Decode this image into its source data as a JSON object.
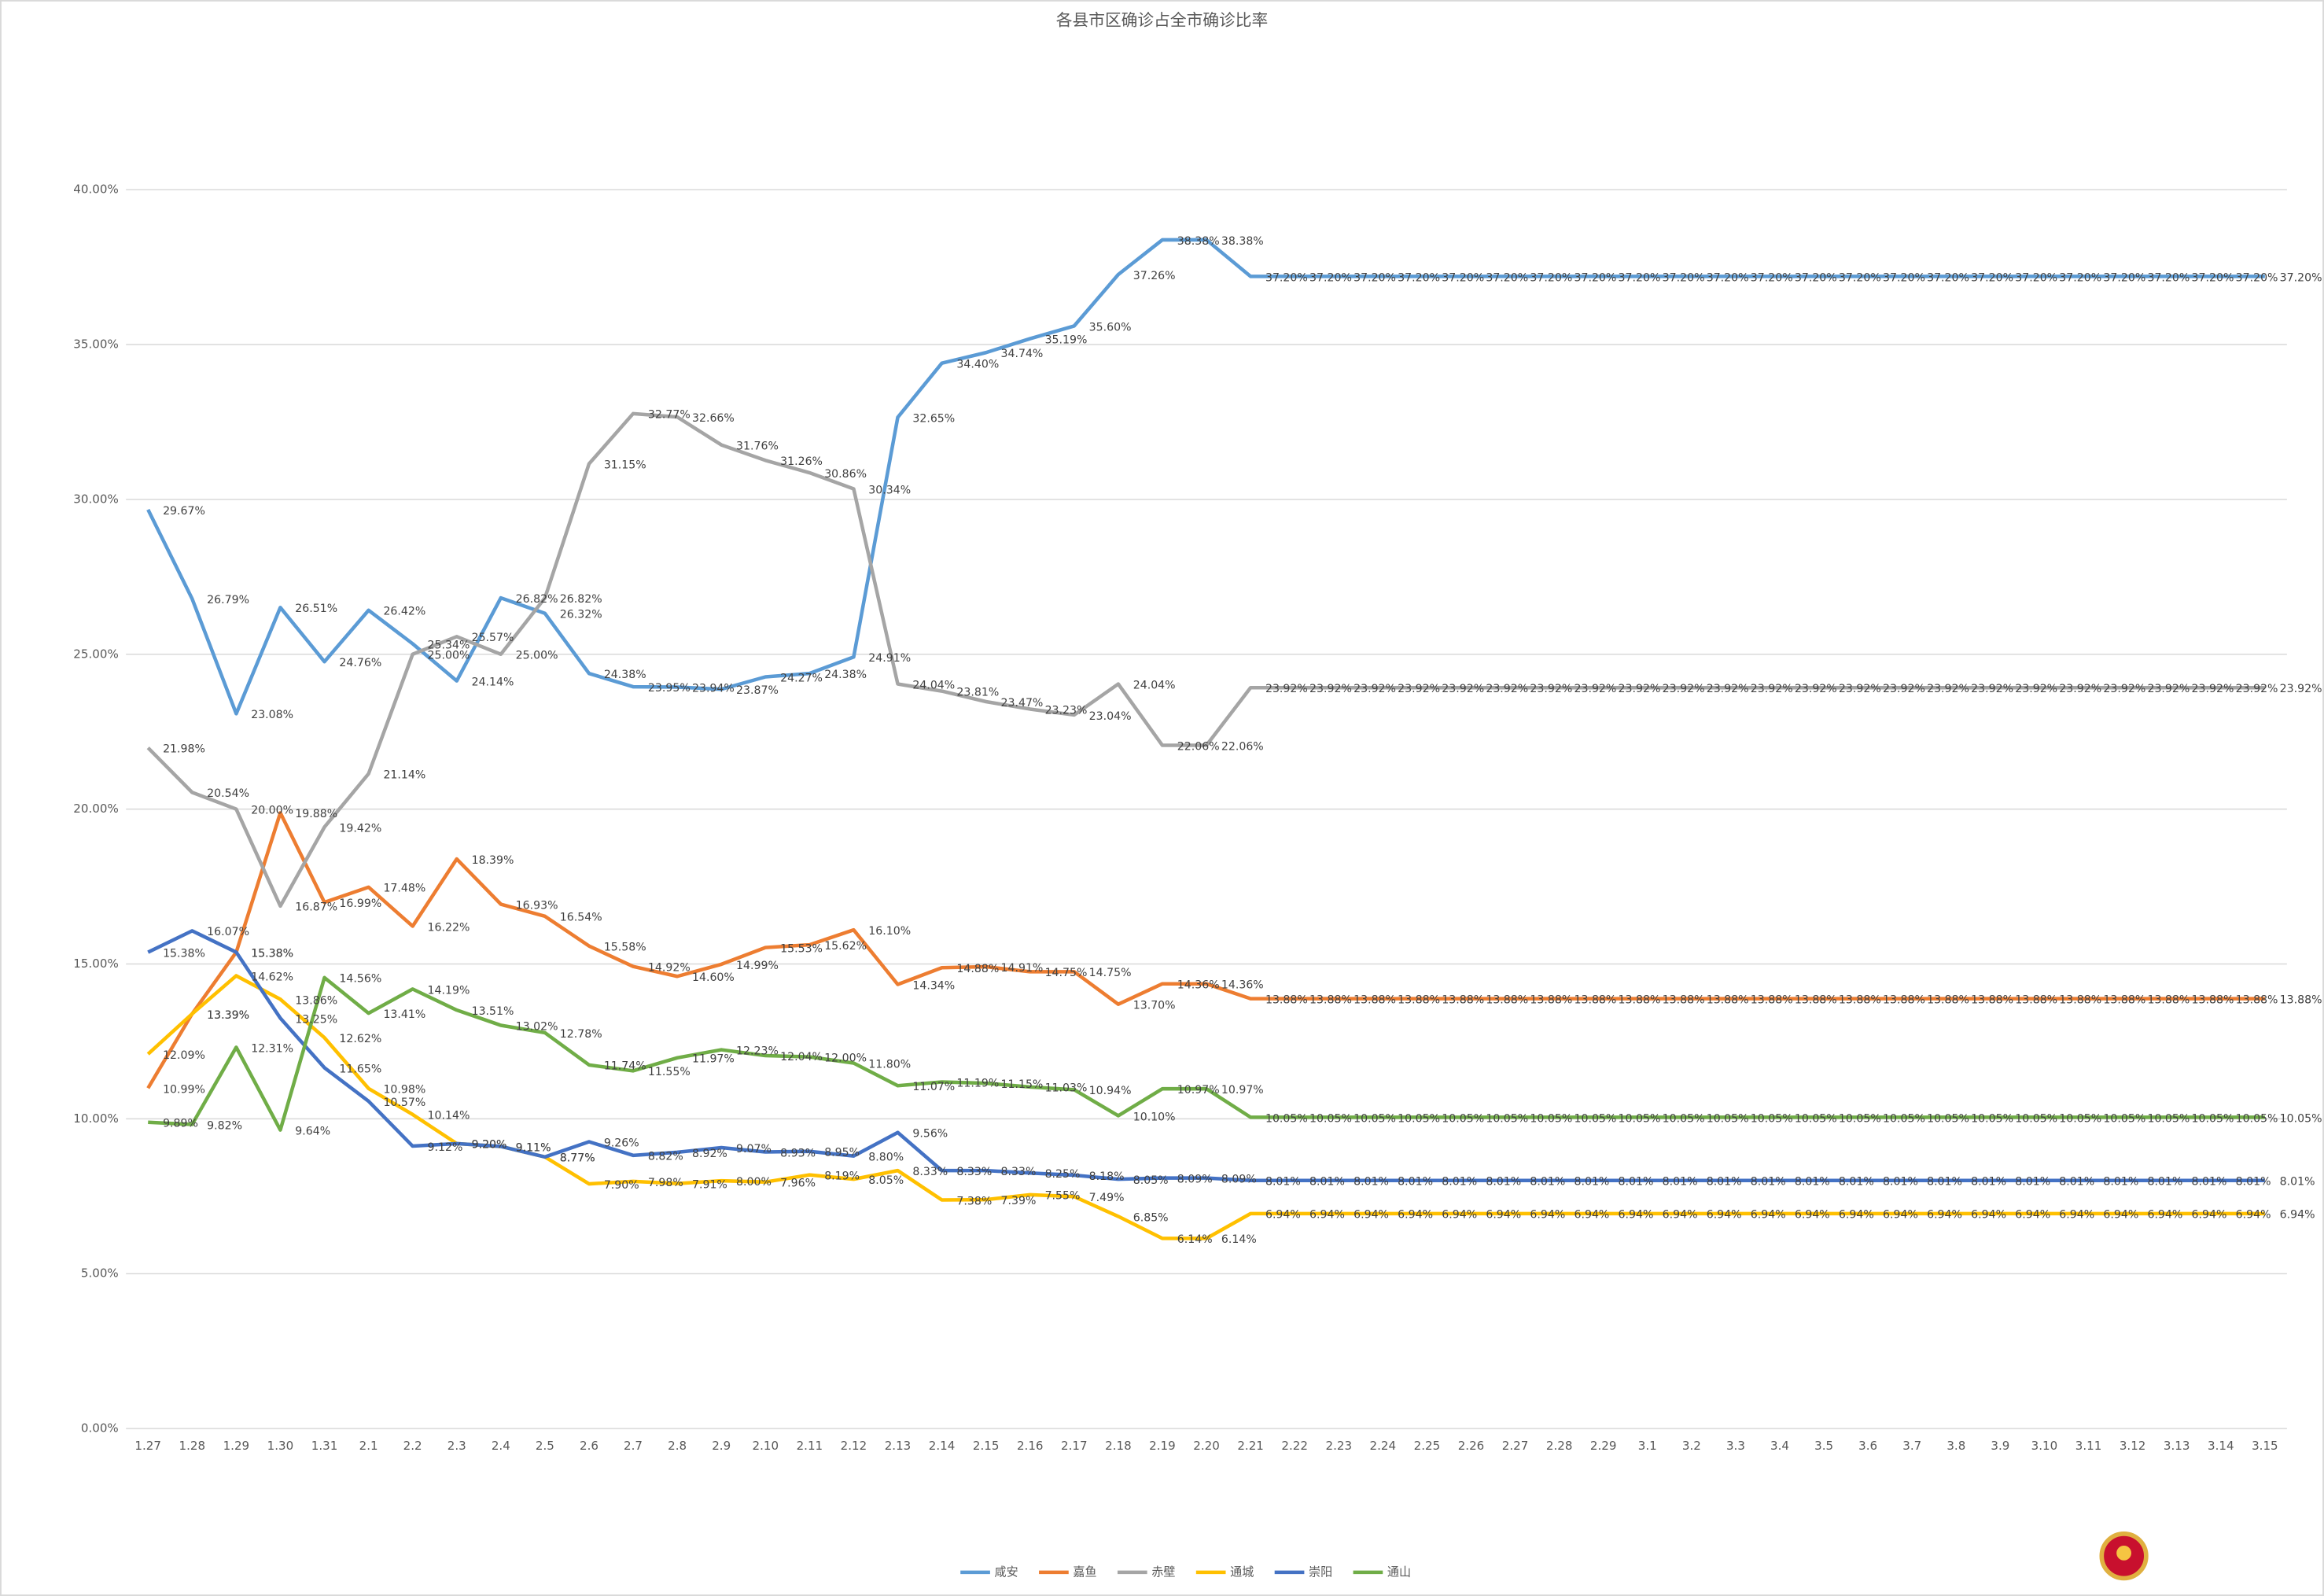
{
  "chart_data": {
    "type": "line",
    "title": "各县市区确诊占全市确诊比率",
    "categories": [
      "1.27",
      "1.28",
      "1.29",
      "1.30",
      "1.31",
      "2.1",
      "2.2",
      "2.3",
      "2.4",
      "2.5",
      "2.6",
      "2.7",
      "2.8",
      "2.9",
      "2.10",
      "2.11",
      "2.12",
      "2.13",
      "2.14",
      "2.15",
      "2.16",
      "2.17",
      "2.18",
      "2.19",
      "2.20",
      "2.21",
      "2.22",
      "2.23",
      "2.24",
      "2.25",
      "2.26",
      "2.27",
      "2.28",
      "2.29",
      "3.1",
      "3.2",
      "3.3",
      "3.4",
      "3.5",
      "3.6",
      "3.7",
      "3.8",
      "3.9",
      "3.10",
      "3.11",
      "3.12",
      "3.13",
      "3.14",
      "3.15"
    ],
    "ylim": [
      0,
      40
    ],
    "yticks": [
      {
        "value": 0,
        "label": "0.00%"
      },
      {
        "value": 5,
        "label": "5.00%"
      },
      {
        "value": 10,
        "label": "10.00%"
      },
      {
        "value": 15,
        "label": "15.00%"
      },
      {
        "value": 20,
        "label": "20.00%"
      },
      {
        "value": 25,
        "label": "25.00%"
      },
      {
        "value": 30,
        "label": "30.00%"
      },
      {
        "value": 35,
        "label": "35.00%"
      },
      {
        "value": 40,
        "label": "40.00%"
      }
    ],
    "grid": true,
    "legend": "bottom",
    "series": [
      {
        "name": "咸安",
        "color": "#5b9bd5",
        "values": [
          29.67,
          26.79,
          23.08,
          26.51,
          24.76,
          26.42,
          25.34,
          24.14,
          26.82,
          26.32,
          24.38,
          23.95,
          23.94,
          23.87,
          24.27,
          24.38,
          24.91,
          32.65,
          34.4,
          34.74,
          35.19,
          35.6,
          37.26,
          38.38,
          38.38,
          37.2,
          37.2,
          37.2,
          37.2,
          37.2,
          37.2,
          37.2,
          37.2,
          37.2,
          37.2,
          37.2,
          37.2,
          37.2,
          37.2,
          37.2,
          37.2,
          37.2,
          37.2,
          37.2,
          37.2,
          37.2,
          37.2,
          37.2,
          37.2
        ],
        "value_labels": [
          "29.67%",
          "26.79%",
          "23.08%",
          "26.51%",
          "24.76%",
          "26.42%",
          "25.34%",
          "24.14%",
          "26.82%",
          "26.32%",
          "24.38%",
          "23.95%",
          "23.94%",
          "23.87%",
          "24.27%",
          "24.38%",
          "24.91%",
          "32.65%",
          "34.40%",
          "34.74%",
          "35.19%",
          "35.60%",
          "37.26%",
          "38.38%",
          "38.38%",
          "37.20%",
          "37.20%",
          "37.20%",
          "37.20%",
          "37.20%",
          "37.20%",
          "37.20%",
          "37.20%",
          "37.20%",
          "37.20%",
          "37.20%",
          "37.20%",
          "37.20%",
          "37.20%",
          "37.20%",
          "37.20%",
          "37.20%",
          "37.20%",
          "37.20%",
          "37.20%",
          "37.20%",
          "37.20%",
          "37.20%",
          "37.20%"
        ]
      },
      {
        "name": "嘉鱼",
        "color": "#ed7d31",
        "values": [
          10.99,
          13.39,
          15.38,
          19.88,
          16.99,
          17.48,
          16.22,
          18.39,
          16.93,
          16.54,
          15.58,
          14.92,
          14.6,
          14.99,
          15.53,
          15.62,
          16.1,
          14.34,
          14.88,
          14.91,
          14.75,
          14.75,
          13.7,
          14.36,
          14.36,
          13.88,
          13.88,
          13.88,
          13.88,
          13.88,
          13.88,
          13.88,
          13.88,
          13.88,
          13.88,
          13.88,
          13.88,
          13.88,
          13.88,
          13.88,
          13.88,
          13.88,
          13.88,
          13.88,
          13.88,
          13.88,
          13.88,
          13.88,
          13.88
        ],
        "value_labels": [
          "10.99%",
          "13.39%",
          "15.38%",
          "19.88%",
          "16.99%",
          "17.48%",
          "16.22%",
          "18.39%",
          "16.93%",
          "16.54%",
          "15.58%",
          "14.92%",
          "14.60%",
          "14.99%",
          "15.53%",
          "15.62%",
          "16.10%",
          "14.34%",
          "14.88%",
          "14.91%",
          "14.75%",
          "14.75%",
          "13.70%",
          "14.36%",
          "14.36%",
          "13.88%",
          "13.88%",
          "13.88%",
          "13.88%",
          "13.88%",
          "13.88%",
          "13.88%",
          "13.88%",
          "13.88%",
          "13.88%",
          "13.88%",
          "13.88%",
          "13.88%",
          "13.88%",
          "13.88%",
          "13.88%",
          "13.88%",
          "13.88%",
          "13.88%",
          "13.88%",
          "13.88%",
          "13.88%",
          "13.88%",
          "13.88%"
        ]
      },
      {
        "name": "赤壁",
        "color": "#a5a5a5",
        "values": [
          21.98,
          20.54,
          20.0,
          16.87,
          19.42,
          21.14,
          25.0,
          25.57,
          25.0,
          26.82,
          31.15,
          32.77,
          32.66,
          31.76,
          31.26,
          30.86,
          30.34,
          24.04,
          23.81,
          23.47,
          23.23,
          23.04,
          24.04,
          22.06,
          22.06,
          23.92,
          23.92,
          23.92,
          23.92,
          23.92,
          23.92,
          23.92,
          23.92,
          23.92,
          23.92,
          23.92,
          23.92,
          23.92,
          23.92,
          23.92,
          23.92,
          23.92,
          23.92,
          23.92,
          23.92,
          23.92,
          23.92,
          23.92,
          23.92
        ],
        "value_labels": [
          "21.98%",
          "20.54%",
          "20.00%",
          "16.87%",
          "19.42%",
          "21.14%",
          "25.00%",
          "25.57%",
          "25.00%",
          "26.82%",
          "31.15%",
          "32.77%",
          "32.66%",
          "31.76%",
          "31.26%",
          "30.86%",
          "30.34%",
          "24.04%",
          "23.81%",
          "23.47%",
          "23.23%",
          "23.04%",
          "24.04%",
          "22.06%",
          "22.06%",
          "23.92%",
          "23.92%",
          "23.92%",
          "23.92%",
          "23.92%",
          "23.92%",
          "23.92%",
          "23.92%",
          "23.92%",
          "23.92%",
          "23.92%",
          "23.92%",
          "23.92%",
          "23.92%",
          "23.92%",
          "23.92%",
          "23.92%",
          "23.92%",
          "23.92%",
          "23.92%",
          "23.92%",
          "23.92%",
          "23.92%",
          "23.92%"
        ]
      },
      {
        "name": "通城",
        "color": "#ffc000",
        "values": [
          12.09,
          13.39,
          14.62,
          13.86,
          12.62,
          10.98,
          10.14,
          9.2,
          9.11,
          8.77,
          7.9,
          7.98,
          7.91,
          8.0,
          7.96,
          8.19,
          8.05,
          8.33,
          7.38,
          7.39,
          7.55,
          7.49,
          6.85,
          6.14,
          6.14,
          6.94,
          6.94,
          6.94,
          6.94,
          6.94,
          6.94,
          6.94,
          6.94,
          6.94,
          6.94,
          6.94,
          6.94,
          6.94,
          6.94,
          6.94,
          6.94,
          6.94,
          6.94,
          6.94,
          6.94,
          6.94,
          6.94,
          6.94,
          6.94
        ],
        "value_labels": [
          "12.09%",
          "13.39%",
          "14.62%",
          "13.86%",
          "12.62%",
          "10.98%",
          "10.14%",
          "9.20%",
          "9.11%",
          "8.77%",
          "7.90%",
          "7.98%",
          "7.91%",
          "8.00%",
          "7.96%",
          "8.19%",
          "8.05%",
          "8.33%",
          "7.38%",
          "7.39%",
          "7.55%",
          "7.49%",
          "6.85%",
          "6.14%",
          "6.14%",
          "6.94%",
          "6.94%",
          "6.94%",
          "6.94%",
          "6.94%",
          "6.94%",
          "6.94%",
          "6.94%",
          "6.94%",
          "6.94%",
          "6.94%",
          "6.94%",
          "6.94%",
          "6.94%",
          "6.94%",
          "6.94%",
          "6.94%",
          "6.94%",
          "6.94%",
          "6.94%",
          "6.94%",
          "6.94%",
          "6.94%",
          "6.94%"
        ]
      },
      {
        "name": "崇阳",
        "color": "#4472c4",
        "values": [
          15.38,
          16.07,
          15.38,
          13.25,
          11.65,
          10.57,
          9.12,
          9.2,
          9.11,
          8.77,
          9.26,
          8.82,
          8.92,
          9.07,
          8.93,
          8.95,
          8.8,
          9.56,
          8.33,
          8.33,
          8.25,
          8.18,
          8.05,
          8.09,
          8.09,
          8.01,
          8.01,
          8.01,
          8.01,
          8.01,
          8.01,
          8.01,
          8.01,
          8.01,
          8.01,
          8.01,
          8.01,
          8.01,
          8.01,
          8.01,
          8.01,
          8.01,
          8.01,
          8.01,
          8.01,
          8.01,
          8.01,
          8.01,
          8.01
        ],
        "value_labels": [
          "15.38%",
          "16.07%",
          "15.38%",
          "13.25%",
          "11.65%",
          "10.57%",
          "9.12%",
          "9.20%",
          "9.11%",
          "8.77%",
          "9.26%",
          "8.82%",
          "8.92%",
          "9.07%",
          "8.93%",
          "8.95%",
          "8.80%",
          "9.56%",
          "8.33%",
          "8.33%",
          "8.25%",
          "8.18%",
          "8.05%",
          "8.09%",
          "8.09%",
          "8.01%",
          "8.01%",
          "8.01%",
          "8.01%",
          "8.01%",
          "8.01%",
          "8.01%",
          "8.01%",
          "8.01%",
          "8.01%",
          "8.01%",
          "8.01%",
          "8.01%",
          "8.01%",
          "8.01%",
          "8.01%",
          "8.01%",
          "8.01%",
          "8.01%",
          "8.01%",
          "8.01%",
          "8.01%",
          "8.01%",
          "8.01%"
        ]
      },
      {
        "name": "通山",
        "color": "#70ad47",
        "values": [
          9.89,
          9.82,
          12.31,
          9.64,
          14.56,
          13.41,
          14.19,
          13.51,
          13.02,
          12.78,
          11.74,
          11.55,
          11.97,
          12.23,
          12.04,
          12.0,
          11.8,
          11.07,
          11.19,
          11.15,
          11.03,
          10.94,
          10.1,
          10.97,
          10.97,
          10.05,
          10.05,
          10.05,
          10.05,
          10.05,
          10.05,
          10.05,
          10.05,
          10.05,
          10.05,
          10.05,
          10.05,
          10.05,
          10.05,
          10.05,
          10.05,
          10.05,
          10.05,
          10.05,
          10.05,
          10.05,
          10.05,
          10.05,
          10.05
        ],
        "value_labels": [
          "9.89%",
          "9.82%",
          "12.31%",
          "9.64%",
          "14.56%",
          "13.41%",
          "14.19%",
          "13.51%",
          "13.02%",
          "12.78%",
          "11.74%",
          "11.55%",
          "11.97%",
          "12.23%",
          "12.04%",
          "12.00%",
          "11.80%",
          "11.07%",
          "11.19%",
          "11.15%",
          "11.03%",
          "10.94%",
          "10.10%",
          "10.97%",
          "10.97%",
          "10.05%",
          "10.05%",
          "10.05%",
          "10.05%",
          "10.05%",
          "10.05%",
          "10.05%",
          "10.05%",
          "10.05%",
          "10.05%",
          "10.05%",
          "10.05%",
          "10.05%",
          "10.05%",
          "10.05%",
          "10.05%",
          "10.05%",
          "10.05%",
          "10.05%",
          "10.05%",
          "10.05%",
          "10.05%",
          "10.05%",
          "10.05%"
        ]
      }
    ]
  }
}
